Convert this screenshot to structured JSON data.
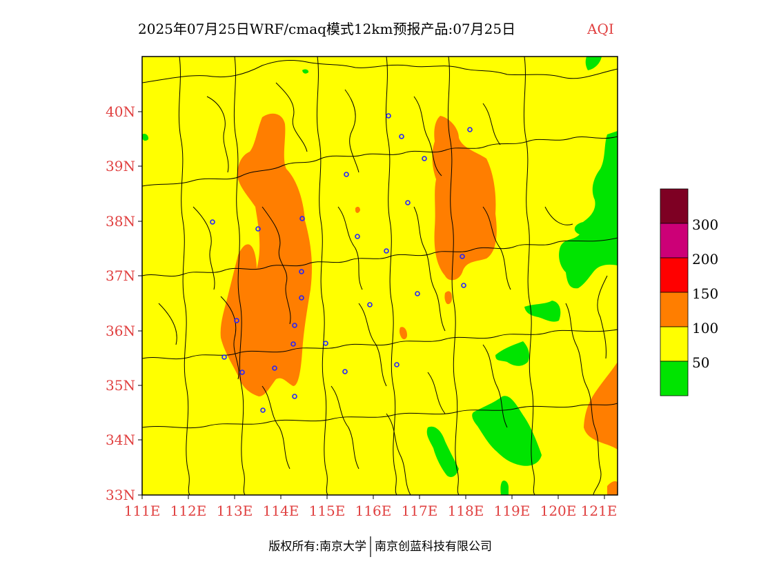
{
  "title": {
    "main": "2025年07月25日WRF/cmaq模式12km预报产品:07月25日",
    "variable": "AQI"
  },
  "colors": {
    "good": "#00e400",
    "moderate": "#ffff00",
    "usg": "#ff7e00",
    "unhealthy": "#ff0000",
    "very_unhealthy": "#cc0077",
    "hazardous": "#7e0023",
    "axis_label": "#e04040",
    "city_marker": "#2222ff"
  },
  "axes": {
    "lon_ticks": [
      "111E",
      "112E",
      "113E",
      "114E",
      "115E",
      "116E",
      "117E",
      "118E",
      "119E",
      "120E",
      "121E"
    ],
    "lat_ticks": [
      "40N",
      "39N",
      "38N",
      "37N",
      "36N",
      "35N",
      "34N",
      "33N"
    ]
  },
  "legend": {
    "labels": [
      "300",
      "200",
      "150",
      "100",
      "50"
    ]
  },
  "footer": {
    "copyright": "版权所有:南京大学",
    "company": "南京创蓝科技有限公司"
  }
}
